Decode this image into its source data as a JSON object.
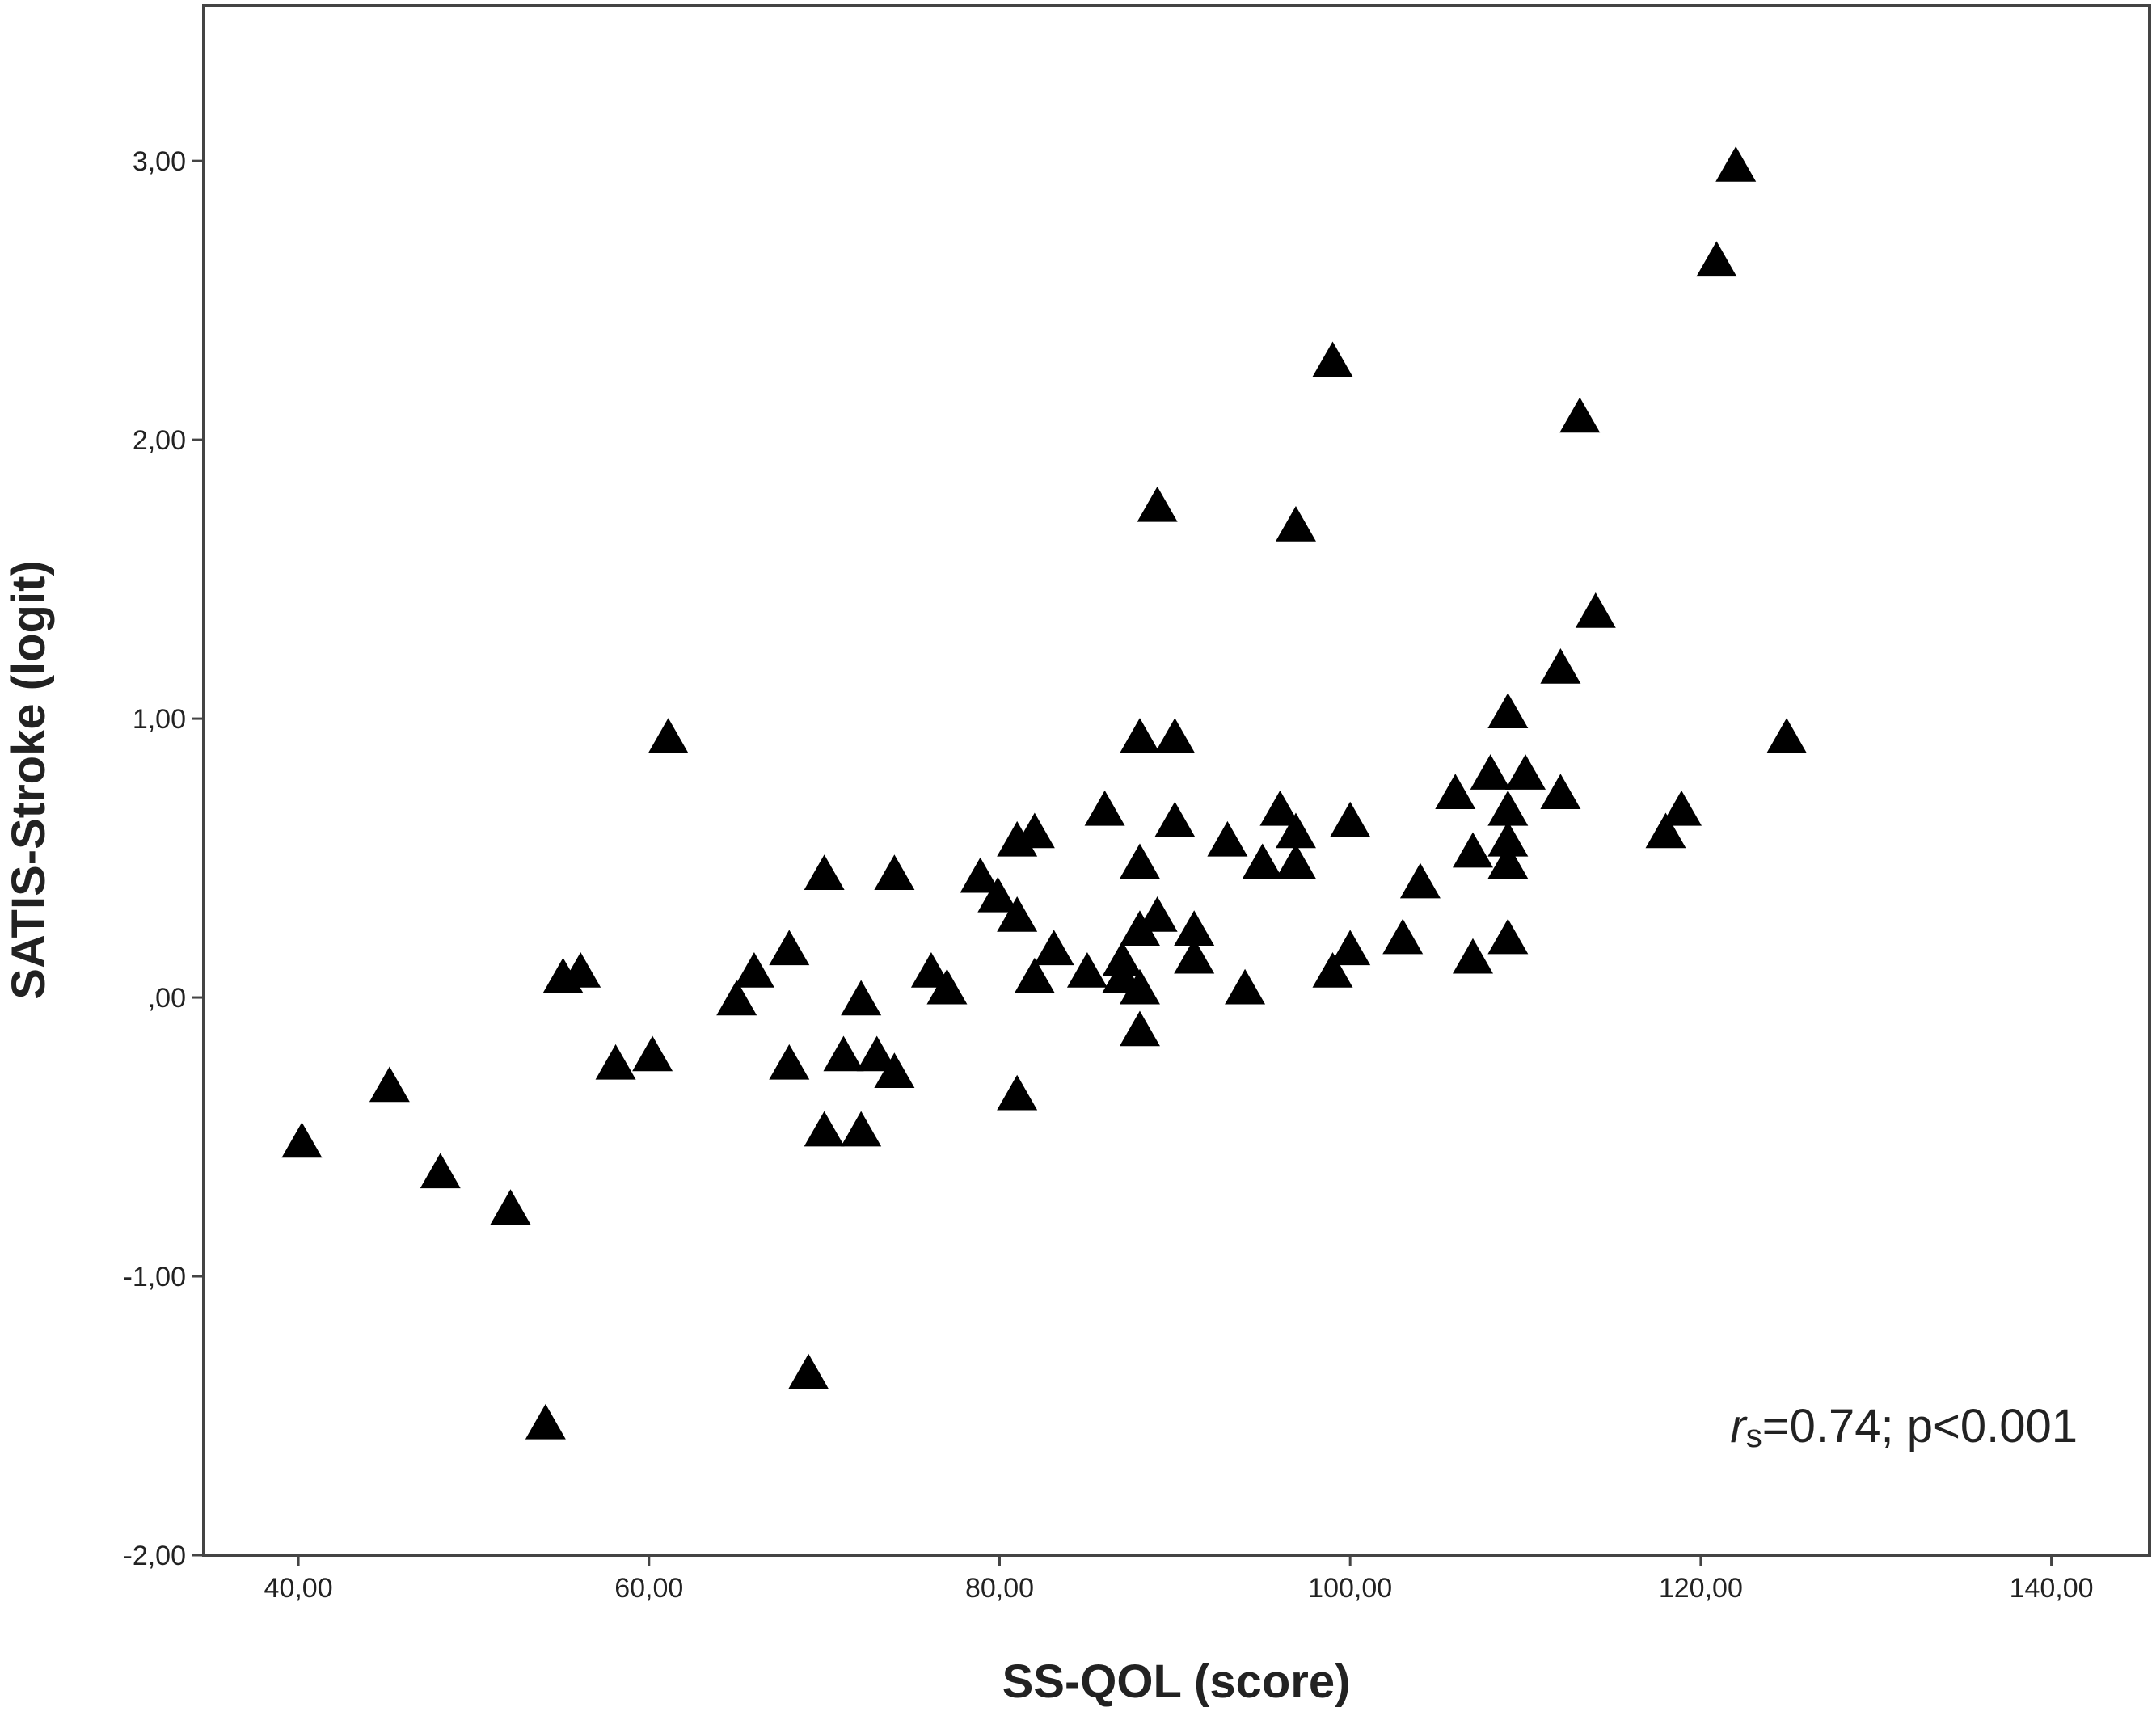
{
  "chart_data": {
    "type": "scatter",
    "x_label": "SS-QOL (score)",
    "y_label": "SATIS-Stroke (logit)",
    "annotation": [
      "r",
      "s",
      "=0.74;  p<0.001"
    ],
    "marker": "triangle",
    "color": "#000000",
    "x": [
      40.2,
      45.2,
      48.1,
      52.1,
      54.1,
      55.1,
      56.1,
      58.1,
      60.2,
      61.1,
      65.0,
      66.0,
      68.0,
      68.0,
      69.1,
      70.0,
      70.0,
      71.1,
      72.1,
      72.1,
      73.0,
      74.0,
      74.0,
      76.1,
      77.0,
      78.9,
      79.9,
      81.0,
      81.0,
      81.0,
      82.0,
      82.0,
      83.1,
      85.0,
      86.0,
      87.0,
      87.0,
      88.0,
      88.0,
      88.0,
      88.0,
      88.0,
      89.0,
      89.0,
      90.0,
      90.0,
      91.1,
      91.1,
      93.0,
      94.0,
      95.0,
      96.0,
      96.9,
      96.9,
      96.9,
      99.0,
      99.0,
      100.0,
      100.0,
      103.0,
      104.0,
      106.0,
      107.0,
      107.0,
      108.0,
      109.0,
      109.0,
      109.0,
      109.0,
      109.0,
      110.0,
      112.0,
      112.0,
      113.1,
      114.0,
      118.0,
      118.9,
      120.9,
      122.0,
      124.9
    ],
    "values": [
      -0.52,
      -0.32,
      -0.63,
      -0.76,
      -1.53,
      0.07,
      0.09,
      -0.24,
      -0.21,
      0.93,
      -0.01,
      0.09,
      0.17,
      -0.24,
      -1.35,
      0.44,
      -0.48,
      -0.21,
      -0.01,
      -0.48,
      -0.21,
      -0.27,
      0.44,
      0.09,
      0.03,
      0.43,
      0.36,
      0.29,
      0.56,
      -0.35,
      0.59,
      0.07,
      0.17,
      0.09,
      0.67,
      0.13,
      0.07,
      0.03,
      -0.12,
      0.93,
      0.48,
      0.24,
      1.76,
      0.29,
      0.93,
      0.63,
      0.24,
      0.14,
      0.56,
      0.03,
      0.48,
      0.67,
      1.69,
      0.59,
      0.48,
      2.28,
      0.09,
      0.17,
      0.63,
      0.21,
      0.41,
      0.73,
      0.52,
      0.14,
      0.8,
      1.02,
      0.67,
      0.56,
      0.48,
      0.21,
      0.8,
      0.73,
      1.18,
      2.08,
      1.38,
      0.59,
      0.67,
      2.64,
      2.98,
      0.93
    ],
    "xlim": [
      34.6,
      145.6
    ],
    "ylim": [
      -2,
      3.557
    ],
    "xticks": [
      {
        "value": 40,
        "label": "40,00"
      },
      {
        "value": 60,
        "label": "60,00"
      },
      {
        "value": 80,
        "label": "80,00"
      },
      {
        "value": 100,
        "label": "100,00"
      },
      {
        "value": 120,
        "label": "120,00"
      },
      {
        "value": 140,
        "label": "140,00"
      }
    ],
    "yticks": [
      {
        "value": -2,
        "label": "-2,00"
      },
      {
        "value": -1,
        "label": "-1,00"
      },
      {
        "value": 0,
        "label": ",00"
      },
      {
        "value": 1,
        "label": "1,00"
      },
      {
        "value": 2,
        "label": "2,00"
      },
      {
        "value": 3,
        "label": "3,00"
      }
    ],
    "grid": false
  }
}
